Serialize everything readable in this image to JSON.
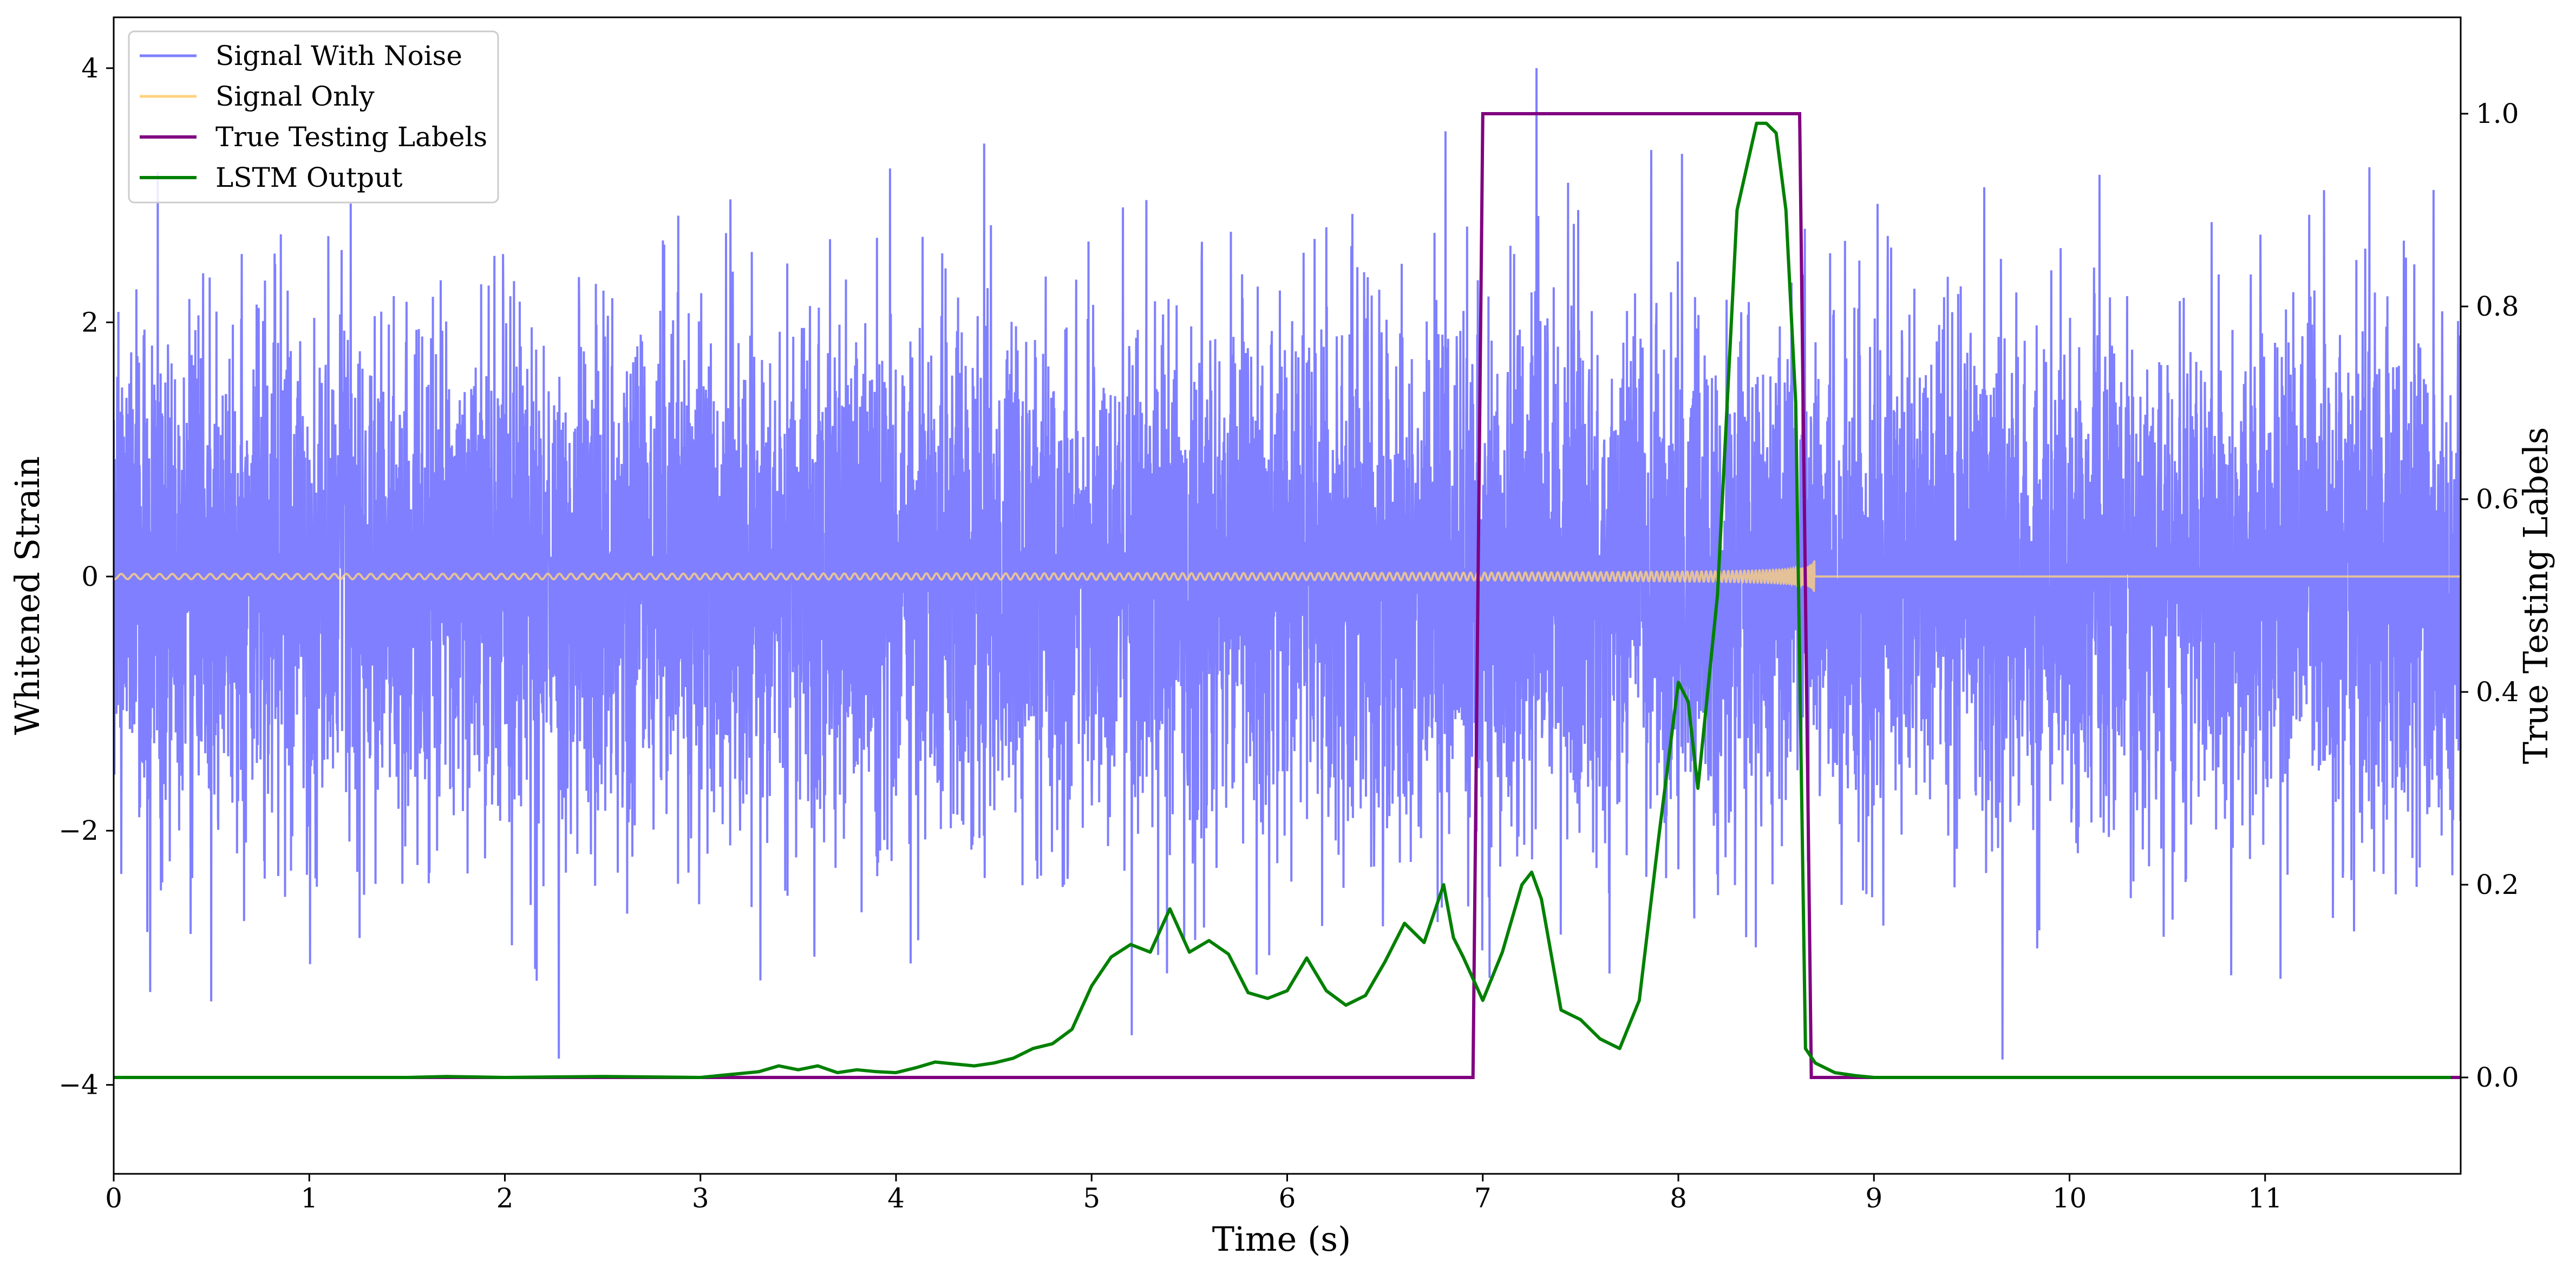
{
  "chart_data": {
    "type": "line",
    "xlabel": "Time (s)",
    "ylabel": "Whitened Strain",
    "y2label": "True Testing Labels",
    "xlim": [
      0,
      12
    ],
    "ylim": [
      -4.7,
      4.4
    ],
    "y2lim": [
      -0.1,
      1.1
    ],
    "x_ticks": [
      0,
      1,
      2,
      3,
      4,
      5,
      6,
      7,
      8,
      9,
      10,
      11
    ],
    "y_ticks": [
      -4,
      -2,
      0,
      2,
      4
    ],
    "y2_ticks": [
      0.0,
      0.2,
      0.4,
      0.6,
      0.8,
      1.0
    ],
    "legend_position": "top-left",
    "colors": {
      "signal_with_noise": "#7f7fff",
      "signal_only": "#ffd27f",
      "true_testing_labels": "#800080",
      "lstm_output": "#008000"
    },
    "series": [
      {
        "name": "Signal With Noise",
        "axis": "left",
        "description_of_values": "noisy whitened strain, approximately Gaussian with std about 1 over 0-12 s",
        "approx_std": 1.0,
        "approx_range": [
          -4.3,
          4.0
        ]
      },
      {
        "name": "Signal Only",
        "axis": "left",
        "description_of_values": "chirp oscillation growing in amplitude and frequency, merging near 8.7 s, zero afterwards",
        "merger_time": 8.7
      },
      {
        "name": "True Testing Labels",
        "axis": "right",
        "x": [
          0,
          6.95,
          7.0,
          8.62,
          8.68,
          12
        ],
        "y": [
          0,
          0,
          1,
          1,
          0,
          0
        ]
      },
      {
        "name": "LSTM Output",
        "axis": "right",
        "x": [
          0,
          1.0,
          1.5,
          1.7,
          2.0,
          2.5,
          3.0,
          3.1,
          3.3,
          3.4,
          3.5,
          3.6,
          3.7,
          3.8,
          3.9,
          4.0,
          4.1,
          4.2,
          4.3,
          4.4,
          4.5,
          4.6,
          4.7,
          4.8,
          4.9,
          5.0,
          5.1,
          5.2,
          5.3,
          5.4,
          5.5,
          5.6,
          5.7,
          5.8,
          5.9,
          6.0,
          6.1,
          6.2,
          6.3,
          6.4,
          6.5,
          6.6,
          6.7,
          6.8,
          6.85,
          6.9,
          7.0,
          7.1,
          7.2,
          7.25,
          7.3,
          7.4,
          7.5,
          7.6,
          7.7,
          7.8,
          7.9,
          8.0,
          8.05,
          8.1,
          8.2,
          8.3,
          8.4,
          8.45,
          8.5,
          8.55,
          8.6,
          8.65,
          8.7,
          8.8,
          8.9,
          9.0,
          10.0,
          11.0,
          11.95
        ],
        "y": [
          0,
          0,
          0,
          0.001,
          0,
          0.001,
          0,
          0.002,
          0.006,
          0.012,
          0.008,
          0.012,
          0.005,
          0.008,
          0.006,
          0.005,
          0.01,
          0.016,
          0.014,
          0.012,
          0.015,
          0.02,
          0.03,
          0.035,
          0.05,
          0.095,
          0.125,
          0.138,
          0.13,
          0.175,
          0.13,
          0.142,
          0.128,
          0.088,
          0.082,
          0.09,
          0.124,
          0.09,
          0.075,
          0.085,
          0.12,
          0.16,
          0.14,
          0.2,
          0.145,
          0.125,
          0.08,
          0.13,
          0.2,
          0.213,
          0.185,
          0.07,
          0.06,
          0.04,
          0.03,
          0.08,
          0.25,
          0.41,
          0.39,
          0.3,
          0.5,
          0.9,
          0.99,
          0.99,
          0.98,
          0.9,
          0.7,
          0.03,
          0.015,
          0.005,
          0.002,
          0,
          0,
          0,
          0
        ]
      }
    ]
  }
}
